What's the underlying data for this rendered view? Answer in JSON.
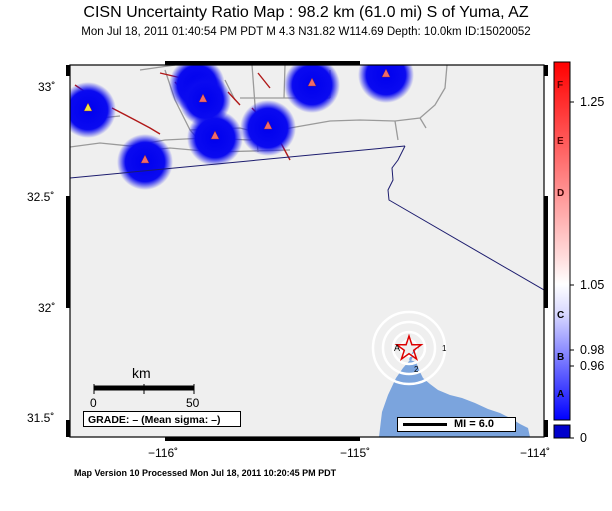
{
  "header": {
    "title": "CISN Uncertainty Ratio Map : 98.2 km (61.0 mi) S of Yuma, AZ",
    "info": "Mon Jul 18, 2011 01:40:54 PM PDT    M 4.3    N31.82 W114.69    Depth: 10.0km    ID:15020052"
  },
  "axes": {
    "lat_ticks": [
      "33˚",
      "32.5˚",
      "32˚",
      "31.5˚"
    ],
    "lon_ticks": [
      "−116˚",
      "−115˚",
      "−114˚"
    ]
  },
  "scale_bar": {
    "unit": "km",
    "ticks": [
      "0",
      "50"
    ]
  },
  "grade_box": {
    "text": "GRADE: – (Mean sigma: –)"
  },
  "mi_legend": {
    "text": "MI = 6.0"
  },
  "colorbar": {
    "letters": [
      "F",
      "E",
      "D",
      "C",
      "B",
      "A"
    ],
    "values": [
      "1.25",
      "1.05",
      "0.98",
      "0.96",
      "0"
    ],
    "colors": {
      "top": "#ff0000",
      "mid": "#ffffff",
      "bottom": "#0000ff",
      "swatch": "#0000cc"
    }
  },
  "footer": {
    "text": "Map Version 10 Processed Mon Jul 18, 2011 10:20:45 PM PDT"
  },
  "colors": {
    "land": "#efefef",
    "water": "#7ba4dd",
    "stations": "#0a0af0",
    "faults": "#b01818",
    "border": "#1c1c6e"
  }
}
